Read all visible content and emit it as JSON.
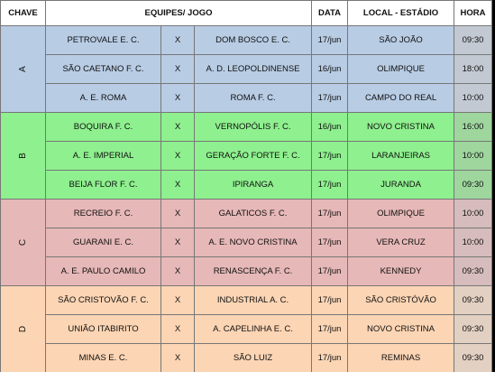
{
  "header": {
    "chave": "CHAVE",
    "equipes": "EQUIPES/ JOGO",
    "data": "DATA",
    "local": "LOCAL - ESTÁDIO",
    "hora": "HORA"
  },
  "groups": [
    {
      "label": "A",
      "games": [
        [
          "PETROVALE E. C.",
          "X",
          "DOM BOSCO E. C.",
          "17/jun",
          "SÃO JOÃO",
          "09:30"
        ],
        [
          "SÃO CAETANO F. C.",
          "X",
          "A. D. LEOPOLDINENSE",
          "16/jun",
          "OLIMPIQUE",
          "18:00"
        ],
        [
          "A. E. ROMA",
          "X",
          "ROMA F. C.",
          "17/jun",
          "CAMPO DO REAL",
          "10:00"
        ]
      ]
    },
    {
      "label": "B",
      "games": [
        [
          "BOQUIRA F. C.",
          "X",
          "VERNOPÓLIS F. C.",
          "16/jun",
          "NOVO CRISTINA",
          "16:00"
        ],
        [
          "A. E. IMPERIAL",
          "X",
          "GERAÇÃO FORTE F. C.",
          "17/jun",
          "LARANJEIRAS",
          "10:00"
        ],
        [
          "BEIJA FLOR F. C.",
          "X",
          "IPIRANGA",
          "17/jun",
          "JURANDA",
          "09:30"
        ]
      ]
    },
    {
      "label": "C",
      "games": [
        [
          "RECREIO F. C.",
          "X",
          "GALATICOS F. C.",
          "17/jun",
          "OLIMPIQUE",
          "10:00"
        ],
        [
          "GUARANI E. C.",
          "X",
          "A. E. NOVO CRISTINA",
          "17/jun",
          "VERA CRUZ",
          "10:00"
        ],
        [
          "A. E. PAULO CAMILO",
          "X",
          "RENASCENÇA F. C.",
          "17/jun",
          "KENNEDY",
          "09:30"
        ]
      ]
    },
    {
      "label": "D",
      "games": [
        [
          "SÃO CRISTOVÃO F. C.",
          "X",
          "INDUSTRIAL A. C.",
          "17/jun",
          "SÃO CRISTÓVÃO",
          "09:30"
        ],
        [
          "UNIÃO ITABIRITO",
          "X",
          "A. CAPELINHA E. C.",
          "17/jun",
          "NOVO CRISTINA",
          "09:30"
        ],
        [
          "MINAS E. C.",
          "X",
          "SÃO LUIZ",
          "17/jun",
          "REMINAS",
          "09:30"
        ]
      ]
    }
  ]
}
